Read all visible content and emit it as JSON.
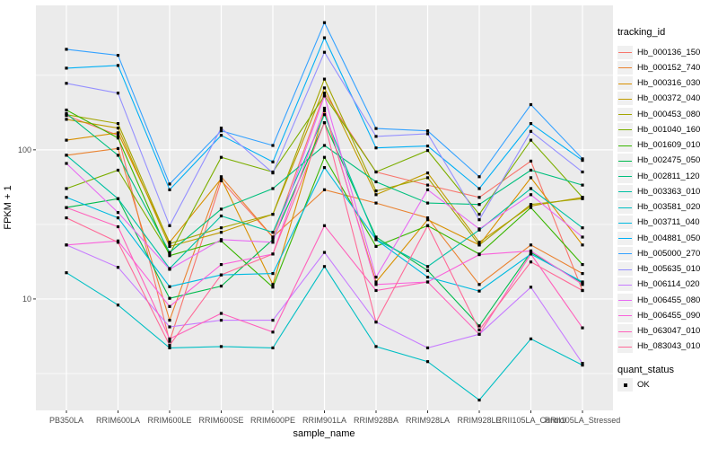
{
  "figure": {
    "bg": "#FFFFFF",
    "panel_bg": "#EBEBEB",
    "grid_color": "#FFFFFF",
    "tick_mark_color": "#333333",
    "tick_label_color": "#4D4D4D",
    "point_color": "#000000"
  },
  "chart_data": {
    "type": "line",
    "title": "",
    "xlabel": "sample_name",
    "ylabel": "FPKM + 1",
    "x_type": "categorical",
    "y_scale": "log10",
    "ylim": [
      1.79,
      930
    ],
    "y_major_ticks": [
      10,
      100
    ],
    "y_minor_ticks": [
      3.16,
      31.6,
      316.2
    ],
    "grid": true,
    "legend_position": "right",
    "point_marker": "filled-black-square",
    "legend_titles": {
      "color": "tracking_id",
      "shape": "quant_status"
    },
    "shape_legend_items": [
      "OK"
    ],
    "categories": [
      "PB350LA",
      "RRIM600LA",
      "RRIM600LE",
      "RRIM600SE",
      "RRIM600PE",
      "RRIM901LA",
      "RRIM928BA",
      "RRIM928LA",
      "RRIM928LE",
      "RRII105LA_Control",
      "RRII105LA_Stressed"
    ],
    "series": [
      {
        "name": "Hb_000136_150",
        "color": "#F8766D",
        "values": [
          170,
          125,
          5.2,
          62,
          26,
          240,
          71,
          58,
          48,
          84,
          11.4
        ]
      },
      {
        "name": "Hb_000152_740",
        "color": "#EA8331",
        "values": [
          92,
          102,
          7.2,
          66,
          26,
          54,
          44,
          35,
          12.5,
          23,
          14.8
        ]
      },
      {
        "name": "Hb_000316_030",
        "color": "#D89000",
        "values": [
          116,
          130,
          24,
          64,
          12.5,
          183,
          13,
          34,
          23,
          65,
          23
        ]
      },
      {
        "name": "Hb_000372_040",
        "color": "#C09B00",
        "values": [
          160,
          140,
          22.5,
          28,
          37,
          260,
          50,
          70,
          24,
          42,
          48
        ]
      },
      {
        "name": "Hb_000453_080",
        "color": "#A3A500",
        "values": [
          172,
          150,
          23.5,
          30,
          37,
          298,
          53,
          65,
          23,
          43,
          47
        ]
      },
      {
        "name": "Hb_001040_160",
        "color": "#7CAE00",
        "values": [
          55,
          73,
          20,
          89,
          71,
          230,
          71,
          99,
          37,
          116,
          48
        ]
      },
      {
        "name": "Hb_001609_010",
        "color": "#39B600",
        "values": [
          185,
          120,
          19.5,
          24.5,
          12,
          89,
          22.5,
          31,
          20,
          41,
          17
        ]
      },
      {
        "name": "Hb_002475_050",
        "color": "#00BB4E",
        "values": [
          41,
          47,
          10.1,
          12.2,
          25,
          152,
          26,
          15.5,
          6.6,
          20.5,
          12.8
        ]
      },
      {
        "name": "Hb_002811_120",
        "color": "#00BF7D",
        "values": [
          175,
          92,
          20.5,
          40,
          55,
          107,
          61,
          44,
          43,
          73,
          58
        ]
      },
      {
        "name": "Hb_003363_010",
        "color": "#00C1A3",
        "values": [
          92,
          47,
          16,
          36,
          28,
          172,
          25,
          16.5,
          29,
          55,
          30
        ]
      },
      {
        "name": "Hb_003581_020",
        "color": "#00BFC4",
        "values": [
          15,
          9.1,
          4.7,
          4.8,
          4.7,
          16.5,
          4.8,
          3.8,
          2.1,
          5.4,
          3.6
        ]
      },
      {
        "name": "Hb_003711_040",
        "color": "#00BAE0",
        "values": [
          48,
          35,
          12.1,
          14.5,
          14.8,
          76,
          25,
          14,
          11.3,
          20,
          13
        ]
      },
      {
        "name": "Hb_004881_050",
        "color": "#00B0F6",
        "values": [
          353,
          368,
          54,
          125,
          83,
          564,
          103,
          106,
          55,
          150,
          85
        ]
      },
      {
        "name": "Hb_005000_270",
        "color": "#35A2FF",
        "values": [
          472,
          430,
          59,
          134,
          107,
          713,
          139,
          134,
          66,
          201,
          87
        ]
      },
      {
        "name": "Hb_005635_010",
        "color": "#9590FF",
        "values": [
          279,
          240,
          31,
          140,
          70,
          451,
          123,
          128,
          34,
          133,
          71
        ]
      },
      {
        "name": "Hb_006114_020",
        "color": "#C77CFF",
        "values": [
          23,
          16.3,
          6.5,
          7.2,
          7.2,
          20.5,
          7,
          4.7,
          5.8,
          12,
          3.7
        ]
      },
      {
        "name": "Hb_006455_080",
        "color": "#E76BF3",
        "values": [
          81,
          38,
          15.8,
          25,
          24,
          230,
          14,
          54,
          29.5,
          50,
          26
        ]
      },
      {
        "name": "Hb_006455_090",
        "color": "#FA62DB",
        "values": [
          23,
          24.5,
          8.9,
          17,
          20,
          190,
          12.5,
          13,
          19.8,
          21,
          12.5
        ]
      },
      {
        "name": "Hb_063047_010",
        "color": "#FF62BC",
        "values": [
          41,
          30.5,
          5.4,
          8,
          6,
          31,
          11.4,
          13,
          5.8,
          20,
          6.4
        ]
      },
      {
        "name": "Hb_083043_010",
        "color": "#FF6A98",
        "values": [
          35,
          24,
          4.9,
          14.5,
          20,
          152,
          7,
          31,
          6.2,
          17.7,
          11.4
        ]
      }
    ]
  }
}
